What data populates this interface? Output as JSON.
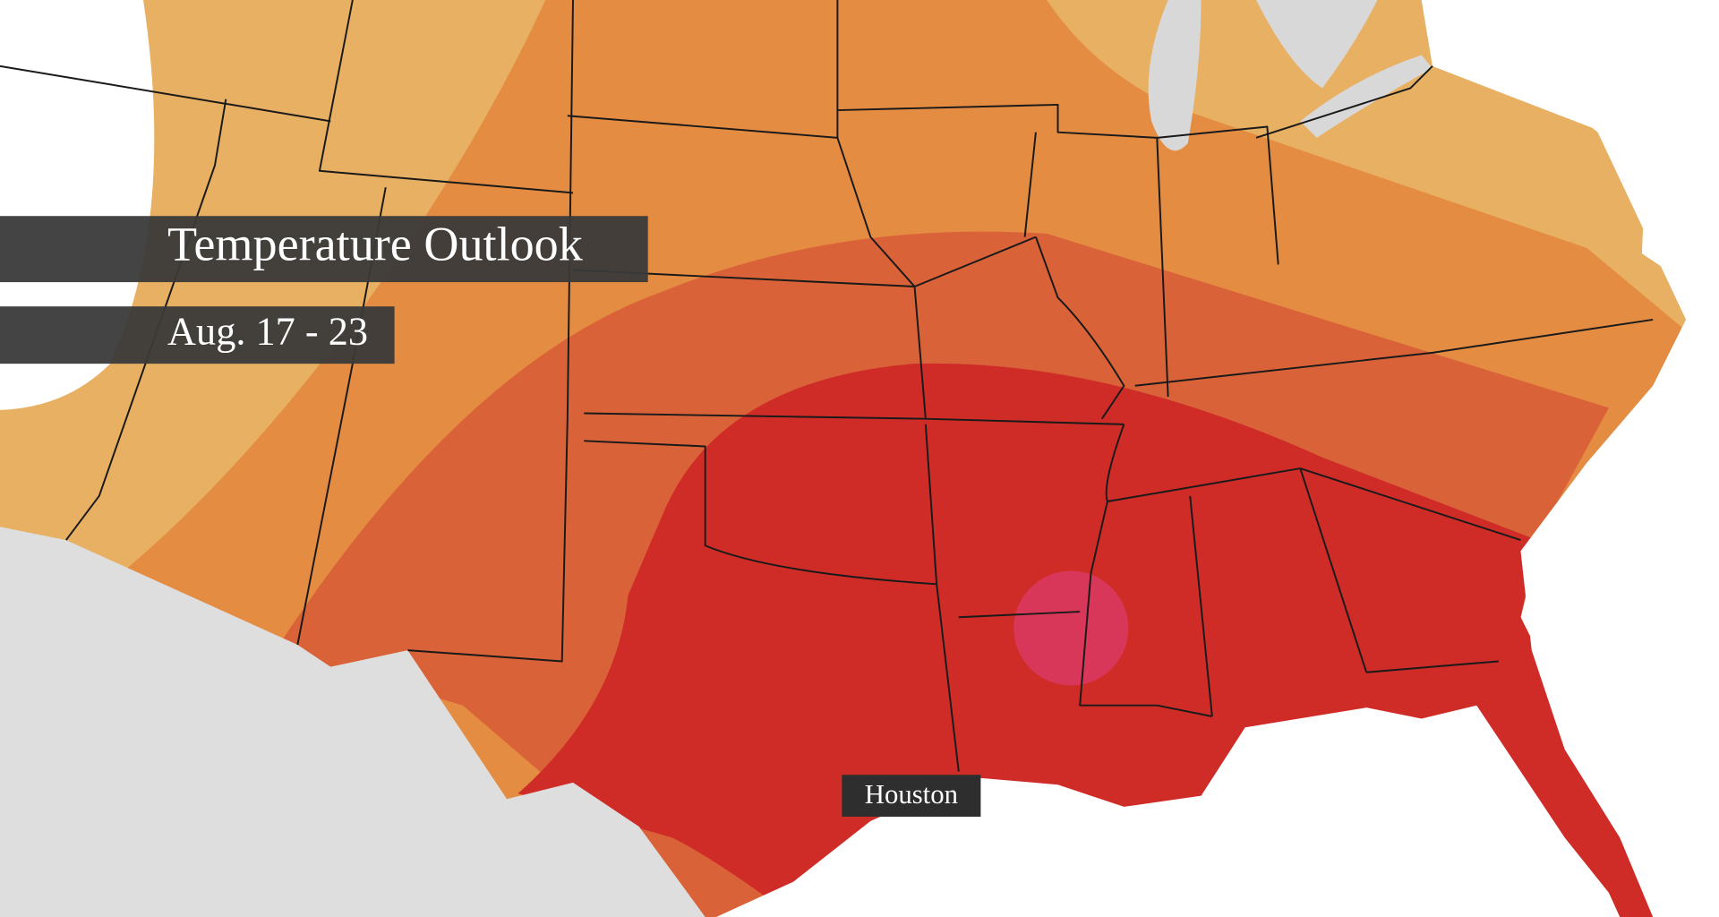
{
  "title": "Temperature Outlook",
  "subtitle": "Aug. 17 - 23",
  "labels": {
    "city": "Houston"
  }
}
